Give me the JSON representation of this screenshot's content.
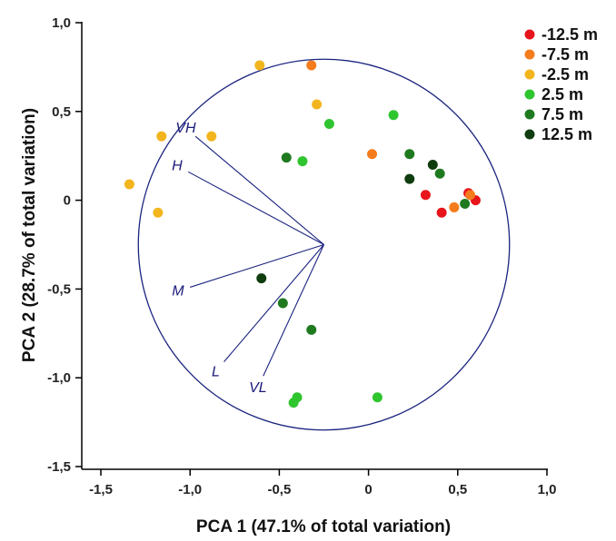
{
  "chart_data": {
    "type": "scatter",
    "xlabel": "PCA 1 (47.1% of total variation)",
    "ylabel": "PCA 2 (28.7% of total variation)",
    "xlim": [
      -1.5,
      1.0
    ],
    "ylim": [
      -1.5,
      1.0
    ],
    "x_ticks": [
      "-1,5",
      "-1,0",
      "-0,5",
      "0",
      "0,5",
      "1,0"
    ],
    "y_ticks": [
      "-1,5",
      "-1,0",
      "-0,5",
      "0",
      "0,5",
      "1,0"
    ],
    "grid": false,
    "legend_position": "top-right",
    "correlation_circle": {
      "center": [
        -0.25,
        -0.25
      ],
      "radius": 1.04,
      "color": "#1a237e"
    },
    "loading_vectors": [
      {
        "label": "VH",
        "end": [
          -0.97,
          0.36
        ]
      },
      {
        "label": "H",
        "end": [
          -1.01,
          0.16
        ]
      },
      {
        "label": "M",
        "end": [
          -1.0,
          -0.49
        ]
      },
      {
        "label": "L",
        "end": [
          -0.81,
          -0.91
        ]
      },
      {
        "label": "VL",
        "end": [
          -0.59,
          -0.99
        ]
      }
    ],
    "series": [
      {
        "name": "-12.5 m",
        "color": "#e8141b",
        "points": [
          [
            0.32,
            0.03
          ],
          [
            0.41,
            -0.07
          ],
          [
            0.56,
            0.04
          ],
          [
            0.6,
            0.0
          ]
        ]
      },
      {
        "name": "-7.5 m",
        "color": "#f47c1c",
        "points": [
          [
            -0.32,
            0.76
          ],
          [
            0.02,
            0.26
          ],
          [
            0.48,
            -0.04
          ],
          [
            0.57,
            0.03
          ]
        ]
      },
      {
        "name": "-2.5 m",
        "color": "#f2b51e",
        "points": [
          [
            -0.61,
            0.76
          ],
          [
            -0.29,
            0.54
          ],
          [
            -0.88,
            0.36
          ],
          [
            -1.16,
            0.36
          ],
          [
            -1.34,
            0.09
          ],
          [
            -1.18,
            -0.07
          ]
        ]
      },
      {
        "name": "2.5 m",
        "color": "#2fc52f",
        "points": [
          [
            0.14,
            0.48
          ],
          [
            -0.22,
            0.43
          ],
          [
            -0.37,
            0.22
          ],
          [
            -0.4,
            -1.11
          ],
          [
            -0.42,
            -1.14
          ],
          [
            0.05,
            -1.11
          ]
        ]
      },
      {
        "name": "7.5 m",
        "color": "#1f7a1f",
        "points": [
          [
            -0.46,
            0.24
          ],
          [
            0.23,
            0.26
          ],
          [
            0.4,
            0.15
          ],
          [
            0.54,
            -0.02
          ],
          [
            -0.48,
            -0.58
          ],
          [
            -0.32,
            -0.73
          ]
        ]
      },
      {
        "name": "12.5 m",
        "color": "#0f3d0f",
        "points": [
          [
            0.36,
            0.2
          ],
          [
            0.23,
            0.12
          ],
          [
            -0.6,
            -0.44
          ]
        ]
      }
    ]
  }
}
